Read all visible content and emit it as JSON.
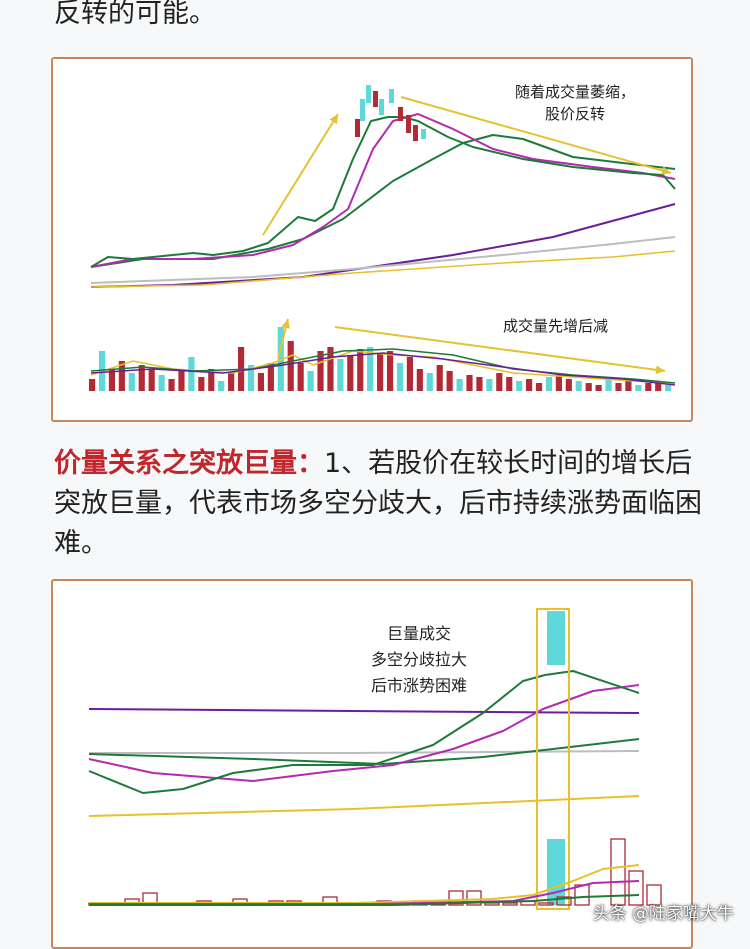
{
  "intro_tail": "反转的可能。",
  "figure1": {
    "annotation_top_line1": "随着成交量萎缩，",
    "annotation_top_line2": "股价反转",
    "annotation_volume": "成交量先增后减"
  },
  "section": {
    "heading": "价量关系之突放巨量：",
    "body": "1、若股价在较长时间的增长后突放巨量，代表市场多空分歧大，后市持续涨势面临困难。"
  },
  "figure2": {
    "annotation_line1": "巨量成交",
    "annotation_line2": "多空分歧拉大",
    "annotation_line3": "后市涨势困难"
  },
  "watermark": "头条 @陆家嘴大牛",
  "colors": {
    "border": "#c8865a",
    "highlight": "#c0272d",
    "arrow": "#e5c231",
    "candle_up": "#5ed8d8",
    "candle_down": "#b12a35",
    "ma_green": "#1f7a3a",
    "ma_magenta": "#b22ab2",
    "ma_purple": "#6a1f9a",
    "ma_gray": "#bdbdbd",
    "ma_yellow": "#e8c02a"
  }
}
